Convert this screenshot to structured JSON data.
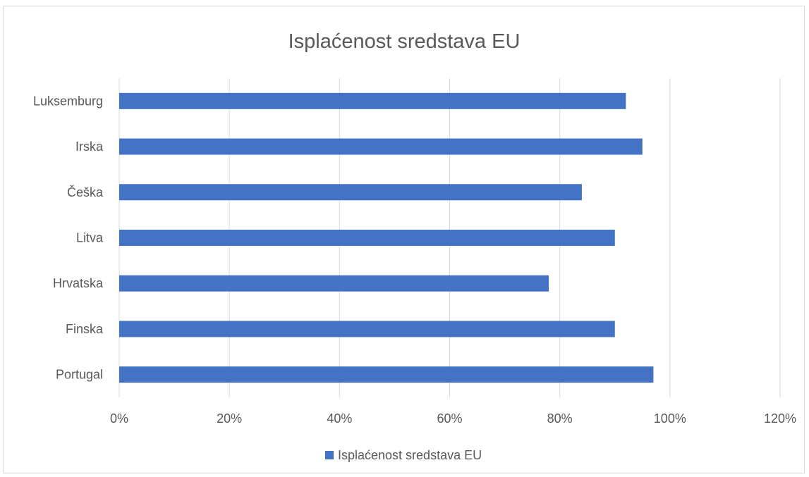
{
  "chart_data": {
    "type": "bar",
    "orientation": "horizontal",
    "title": "Isplaćenost sredstava EU",
    "categories": [
      "Luksemburg",
      "Irska",
      "Češka",
      "Litva",
      "Hrvatska",
      "Finska",
      "Portugal"
    ],
    "series": [
      {
        "name": "Isplaćenost sredstava EU",
        "values": [
          0.92,
          0.95,
          0.84,
          0.9,
          0.78,
          0.9,
          0.97
        ],
        "color": "#4472c4"
      }
    ],
    "xlim": [
      0,
      1.2
    ],
    "xticks": [
      0,
      0.2,
      0.4,
      0.6,
      0.8,
      1.0,
      1.2
    ],
    "xtick_labels": [
      "0%",
      "20%",
      "40%",
      "60%",
      "80%",
      "100%",
      "120%"
    ],
    "grid": "vertical",
    "legend": "bottom"
  }
}
